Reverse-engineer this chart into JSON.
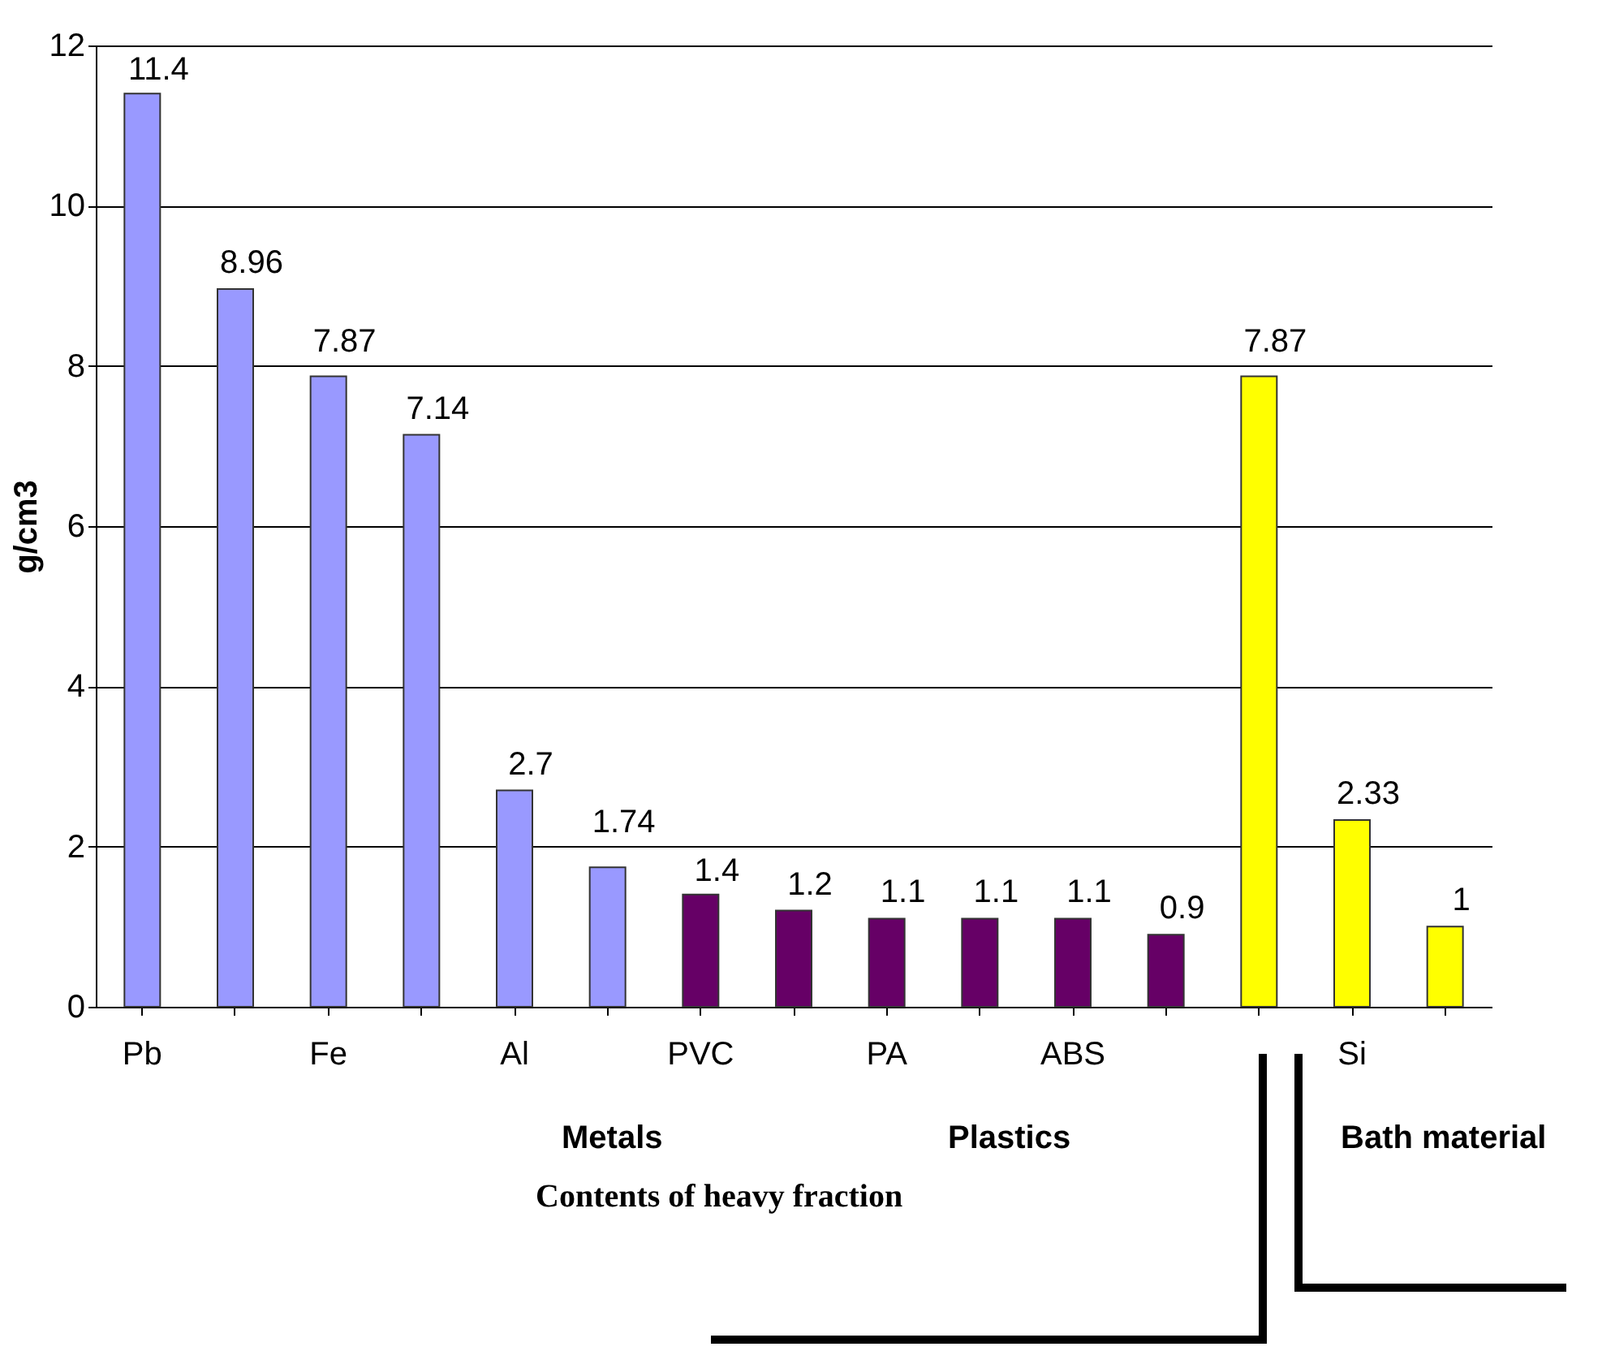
{
  "chart_data": {
    "type": "bar",
    "ylabel": "g/cm3",
    "xlabel": "Contents of heavy fraction",
    "categories": [
      "Pb",
      null,
      "Fe",
      null,
      "Al",
      null,
      "PVC",
      null,
      "PA",
      null,
      "ABS",
      null,
      null,
      null,
      "Si",
      null
    ],
    "values": [
      11.4,
      8.96,
      7.87,
      7.14,
      2.7,
      1.74,
      1.4,
      1.2,
      1.1,
      1.1,
      1.1,
      0.9,
      null,
      7.87,
      2.33,
      1
    ],
    "colors": [
      "#9999ff",
      "#9999ff",
      "#9999ff",
      "#9999ff",
      "#9999ff",
      "#9999ff",
      "#660066",
      "#660066",
      "#660066",
      "#660066",
      "#660066",
      "#660066",
      "#ffffff",
      "#ffff00",
      "#ffff00",
      "#ffff00"
    ],
    "data_labels": true,
    "ylim": [
      0,
      12
    ],
    "yticks": [
      0,
      2,
      4,
      6,
      8,
      10,
      12
    ],
    "grid": "y",
    "annotations": [
      "Metals",
      "Plastics",
      "Bath material"
    ]
  }
}
